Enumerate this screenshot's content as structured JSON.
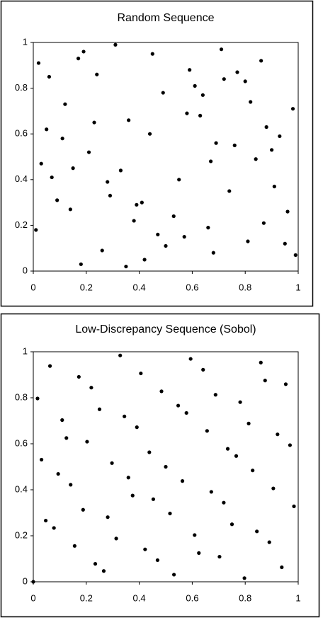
{
  "chart_data": [
    {
      "type": "scatter",
      "title": "Random Sequence",
      "color": "#000000",
      "x": [
        0.12,
        0.87,
        0.45,
        0.33,
        0.68,
        0.05,
        0.91,
        0.24,
        0.57,
        0.76,
        0.39,
        0.02,
        0.63,
        0.18,
        0.84,
        0.49,
        0.29,
        0.95,
        0.71,
        0.11,
        0.53,
        0.36,
        0.8,
        0.07,
        0.66,
        0.42,
        0.98,
        0.21,
        0.59,
        0.14,
        0.88,
        0.31,
        0.74,
        0.47,
        0.03,
        0.61,
        0.26,
        0.93,
        0.55,
        0.17,
        0.82,
        0.38,
        0.69,
        0.09,
        0.5,
        0.77,
        0.23,
        0.96,
        0.35,
        0.64,
        0.15,
        0.86,
        0.44,
        0.01,
        0.72,
        0.28,
        0.9,
        0.58,
        0.19,
        0.81,
        0.41,
        0.67,
        0.06,
        0.99
      ],
      "y": [
        0.73,
        0.21,
        0.95,
        0.44,
        0.08,
        0.62,
        0.37,
        0.86,
        0.15,
        0.55,
        0.29,
        0.91,
        0.68,
        0.03,
        0.49,
        0.78,
        0.33,
        0.12,
        0.97,
        0.58,
        0.24,
        0.66,
        0.83,
        0.41,
        0.19,
        0.05,
        0.71,
        0.52,
        0.88,
        0.27,
        0.63,
        0.99,
        0.35,
        0.16,
        0.47,
        0.81,
        0.09,
        0.59,
        0.4,
        0.93,
        0.74,
        0.22,
        0.56,
        0.31,
        0.11,
        0.87,
        0.65,
        0.26,
        0.02,
        0.77,
        0.45,
        0.92,
        0.6,
        0.18,
        0.84,
        0.39,
        0.53,
        0.69,
        0.96,
        0.13,
        0.3,
        0.48,
        0.85,
        0.07
      ],
      "xlim": [
        0,
        1
      ],
      "ylim": [
        0,
        1
      ],
      "xticks": [
        0,
        0.2,
        0.4,
        0.6,
        0.8,
        1
      ],
      "yticks": [
        0,
        0.2,
        0.4,
        0.6,
        0.8,
        1
      ]
    },
    {
      "type": "scatter",
      "title": "Low-Discrepancy Sequence (Sobol)",
      "color": "#000000",
      "x": [
        0,
        0.5,
        0.25,
        0.75,
        0.125,
        0.625,
        0.375,
        0.875,
        0.063,
        0.563,
        0.313,
        0.813,
        0.188,
        0.688,
        0.438,
        0.938,
        0.031,
        0.531,
        0.281,
        0.781,
        0.156,
        0.656,
        0.406,
        0.906,
        0.094,
        0.594,
        0.344,
        0.844,
        0.219,
        0.719,
        0.469,
        0.969,
        0.016,
        0.516,
        0.266,
        0.766,
        0.141,
        0.641,
        0.391,
        0.891,
        0.078,
        0.578,
        0.328,
        0.828,
        0.203,
        0.703,
        0.453,
        0.953,
        0.047,
        0.547,
        0.297,
        0.797,
        0.172,
        0.672,
        0.422,
        0.922,
        0.109,
        0.609,
        0.359,
        0.859,
        0.234,
        0.734,
        0.484,
        0.984
      ],
      "y": [
        0,
        0.5,
        0.75,
        0.25,
        0.625,
        0.125,
        0.375,
        0.875,
        0.938,
        0.438,
        0.188,
        0.688,
        0.313,
        0.813,
        0.563,
        0.063,
        0.531,
        0.031,
        0.281,
        0.781,
        0.156,
        0.656,
        0.906,
        0.406,
        0.469,
        0.969,
        0.719,
        0.219,
        0.844,
        0.344,
        0.094,
        0.594,
        0.797,
        0.297,
        0.047,
        0.547,
        0.422,
        0.922,
        0.672,
        0.172,
        0.234,
        0.734,
        0.984,
        0.484,
        0.609,
        0.109,
        0.359,
        0.859,
        0.266,
        0.766,
        0.516,
        0.016,
        0.891,
        0.391,
        0.141,
        0.641,
        0.703,
        0.203,
        0.453,
        0.953,
        0.078,
        0.578,
        0.828,
        0.328
      ],
      "xlim": [
        0,
        1
      ],
      "ylim": [
        0,
        1
      ],
      "xticks": [
        0,
        0.2,
        0.4,
        0.6,
        0.8,
        1
      ],
      "yticks": [
        0,
        0.2,
        0.4,
        0.6,
        0.8,
        1
      ]
    }
  ]
}
